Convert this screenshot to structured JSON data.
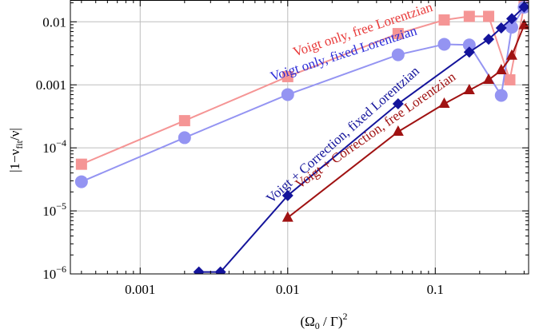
{
  "chart_data": {
    "type": "line",
    "xscale": "log",
    "yscale": "log",
    "xlim": [
      0.0003365,
      0.4291
    ],
    "ylim": [
      1e-06,
      0.02218
    ],
    "grid": true,
    "legend": "inline labels along curves",
    "xlabel_main": "(Ω",
    "xlabel_sub": "0",
    "xlabel_mid": " / Γ)",
    "xlabel_sup": "2",
    "ylabel_pre": "|1−ν",
    "ylabel_sub": "fit",
    "ylabel_post": "/ν|",
    "x_ticks": [
      {
        "value": 0.001,
        "label": "0.001"
      },
      {
        "value": 0.01,
        "label": "0.01"
      },
      {
        "value": 0.1,
        "label": "0.1"
      }
    ],
    "y_ticks": [
      {
        "value": 0.01,
        "base": "0.01",
        "exp": ""
      },
      {
        "value": 0.001,
        "base": "0.001",
        "exp": ""
      },
      {
        "value": 0.0001,
        "base": "10",
        "exp": "−4"
      },
      {
        "value": 1e-05,
        "base": "10",
        "exp": "−5"
      },
      {
        "value": 1e-06,
        "base": "10",
        "exp": "−6"
      }
    ],
    "series": [
      {
        "name": "Voigt only, free Lorentzian",
        "color": "#f59595",
        "marker": "square",
        "x": [
          0.0004,
          0.002,
          0.01,
          0.056,
          0.115,
          0.17,
          0.23,
          0.32,
          0.4
        ],
        "y": [
          5.5e-05,
          0.00027,
          0.00135,
          0.0065,
          0.0107,
          0.0122,
          0.0122,
          0.0012,
          0.018
        ]
      },
      {
        "name": "Voigt only, fixed Lorentzian",
        "color": "#9494f2",
        "marker": "circle",
        "x": [
          0.0004,
          0.002,
          0.01,
          0.056,
          0.115,
          0.17,
          0.28,
          0.33,
          0.4
        ],
        "y": [
          2.9e-05,
          0.000145,
          0.0007,
          0.003,
          0.0044,
          0.0043,
          0.00068,
          0.0082,
          0.017
        ]
      },
      {
        "name": "Voigt + Correction, fixed Lorentzian",
        "color": "#14149b",
        "marker": "diamond",
        "x": [
          0.0025,
          0.0035,
          0.01,
          0.056,
          0.17,
          0.23,
          0.28,
          0.33,
          0.4
        ],
        "y": [
          1.07e-06,
          1.07e-06,
          1.75e-05,
          0.0005,
          0.0033,
          0.0053,
          0.008,
          0.0112,
          0.0172
        ]
      },
      {
        "name": "Voigt + Correction, free Lorentzian",
        "color": "#a01212",
        "marker": "triangle",
        "x": [
          0.01,
          0.056,
          0.115,
          0.17,
          0.23,
          0.28,
          0.33,
          0.4
        ],
        "y": [
          7.8e-06,
          0.00018,
          0.0005,
          0.00082,
          0.0012,
          0.0017,
          0.0029,
          0.0088
        ]
      }
    ],
    "annotations": [
      {
        "text": "Voigt only, free Lorentzian",
        "color": "#e83a3a",
        "series": 0
      },
      {
        "text": "Voigt only, fixed Lorentzian",
        "color": "#2a2ad8",
        "series": 1
      },
      {
        "text": "Voigt + Correction, fixed Lorentzian",
        "color": "#14149b",
        "series": 2
      },
      {
        "text": "Voigt + Correction, free Lorentzian",
        "color": "#a01212",
        "series": 3
      }
    ]
  }
}
